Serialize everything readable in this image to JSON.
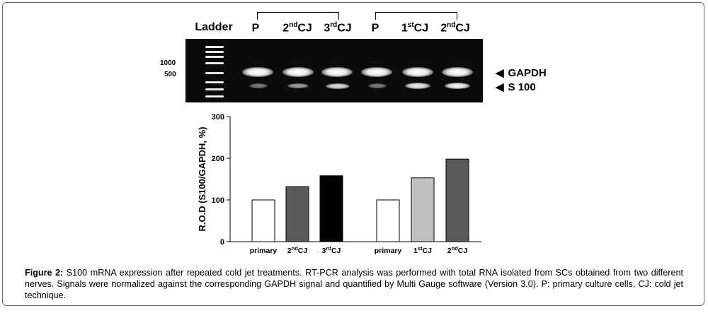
{
  "gel": {
    "ladder_label": "Ladder",
    "lanes": [
      {
        "pre": "P",
        "sup": "",
        "post": ""
      },
      {
        "pre": "2",
        "sup": "nd",
        "post": "CJ"
      },
      {
        "pre": "3",
        "sup": "rd",
        "post": "CJ"
      },
      {
        "pre": "P",
        "sup": "",
        "post": ""
      },
      {
        "pre": "1",
        "sup": "st",
        "post": "CJ"
      },
      {
        "pre": "2",
        "sup": "nd",
        "post": "CJ"
      }
    ],
    "size_markers": [
      "1000",
      "500"
    ],
    "genes": [
      "GAPDH",
      "S 100"
    ],
    "arrow_glyph": "◀"
  },
  "chart_data": {
    "type": "bar",
    "ylabel": "R.O.D (S100/GAPDH, %)",
    "ylim": [
      0,
      300
    ],
    "yticks": [
      0,
      100,
      200,
      300
    ],
    "categories": [
      {
        "pre": "primary",
        "sup": "",
        "post": ""
      },
      {
        "pre": "2",
        "sup": "nd",
        "post": "CJ"
      },
      {
        "pre": "3",
        "sup": "rd",
        "post": "CJ"
      },
      {
        "pre": "primary",
        "sup": "",
        "post": ""
      },
      {
        "pre": "1",
        "sup": "st",
        "post": "CJ"
      },
      {
        "pre": "2",
        "sup": "nd",
        "post": "CJ"
      }
    ],
    "values": [
      100,
      132,
      158,
      100,
      153,
      198
    ],
    "colors": [
      "#ffffff",
      "#5a5a5a",
      "#000000",
      "#ffffff",
      "#c0c0c0",
      "#5a5a5a"
    ]
  },
  "caption": {
    "label": "Figure 2:",
    "text": " S100 mRNA expression after repeated cold jet treatments. RT-PCR analysis was performed with total RNA isolated from SCs obtained from two different nerves. Signals were normalized against the corresponding GAPDH signal and quantified by Multi Gauge software (Version 3.0). P: primary culture cells, CJ: cold jet technique."
  }
}
